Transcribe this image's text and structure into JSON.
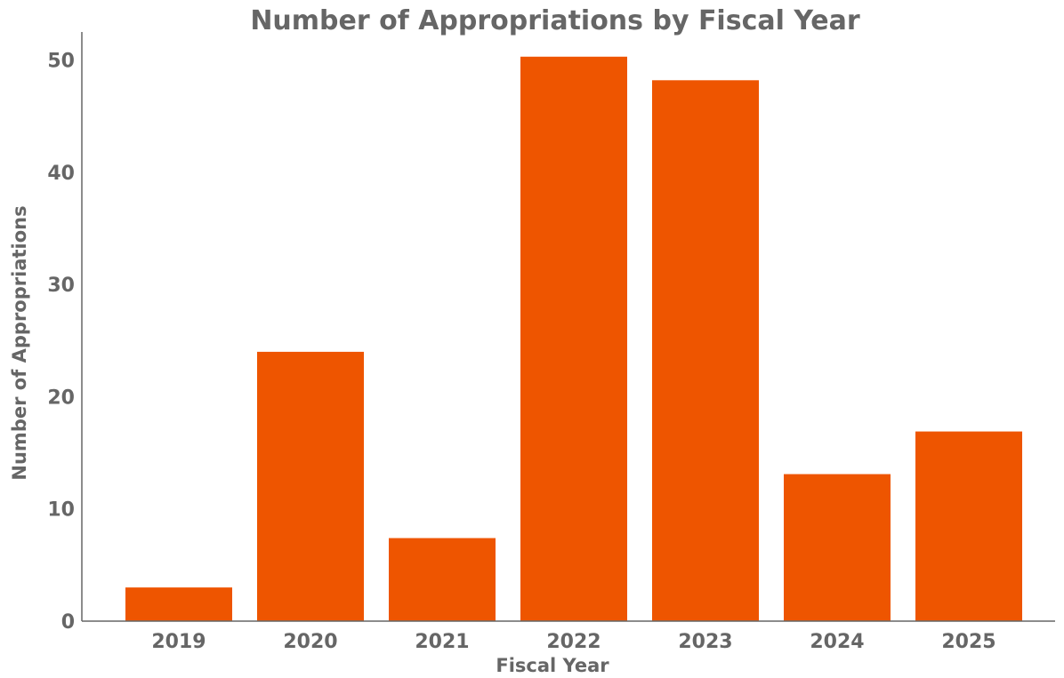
{
  "chart_data": {
    "type": "bar",
    "title": "Number of Appropriations by Fiscal Year",
    "xlabel": "Fiscal Year",
    "ylabel": "Number of Appropriations",
    "categories": [
      "2019",
      "2020",
      "2021",
      "2022",
      "2023",
      "2024",
      "2025"
    ],
    "values": [
      3,
      24,
      7.4,
      50.3,
      48.2,
      13.1,
      16.9
    ],
    "ylim": [
      0,
      52.5
    ],
    "yticks": [
      0,
      10,
      20,
      30,
      40,
      50
    ],
    "grid": false,
    "legend": "none",
    "bar_color": "#EE5500",
    "text_color": "#666666"
  }
}
